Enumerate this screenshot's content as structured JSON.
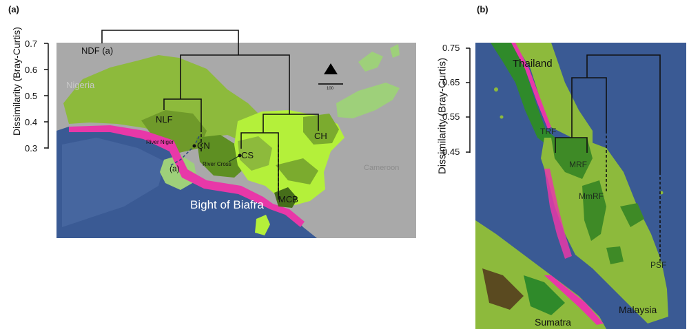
{
  "panel_a": {
    "label": "(a)",
    "axis_title": "Dissimilarity (Bray-Curtis)",
    "ticks": [
      "0.7",
      "0.6",
      "0.5",
      "0.4",
      "0.3"
    ],
    "country_labels": {
      "nigeria": "Nigeria",
      "cameroon": "Cameroon"
    },
    "sea_label": "Bight of Biafra",
    "river_labels": {
      "niger": "River Niger",
      "cross": "River Cross"
    },
    "scale_label": "100",
    "clusters": {
      "ndf": "NDF (a)",
      "nlf": "NLF",
      "cn": "CN",
      "a": "(a)",
      "cs": "CS",
      "ch": "CH",
      "mcb": "MCB"
    }
  },
  "panel_b": {
    "label": "(b)",
    "axis_title": "Dissimilarity (Bray-Curtis)",
    "ticks": [
      "0.75",
      "0.65",
      "0.55",
      "0.45"
    ],
    "region_labels": {
      "thailand": "Thailand",
      "malaysia": "Malaysia",
      "sumatra": "Sumatra"
    },
    "clusters": {
      "trf": "TRF",
      "mrf": "MRF",
      "mmrf": "MmRF",
      "psf": "PSF"
    }
  },
  "colors": {
    "sea": "#3a5a94",
    "land_grey": "#a9a9a9",
    "forest_light": "#8dba3c",
    "forest_bright": "#b4f03a",
    "forest_dark": "#5e8f22",
    "mangrove": "#e838a8",
    "water_pale": "#9ed07a"
  }
}
